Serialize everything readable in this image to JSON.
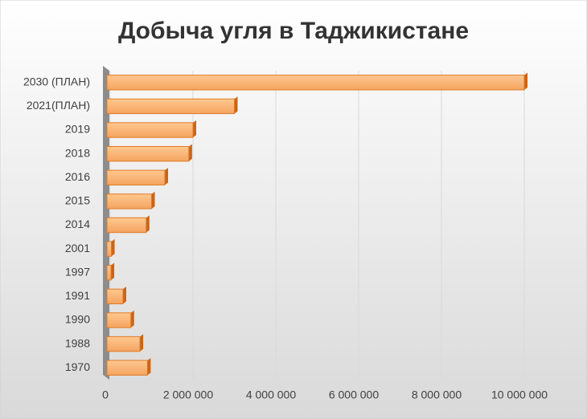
{
  "chart_data": {
    "type": "bar",
    "orientation": "horizontal",
    "title": "Добыча угля в Таджикистане",
    "categories": [
      "2030 (ПЛАН)",
      "2021(ПЛАН)",
      "2019",
      "2018",
      "2016",
      "2015",
      "2014",
      "2001",
      "1997",
      "1991",
      "1990",
      "1988",
      "1970"
    ],
    "values": [
      10000000,
      3000000,
      2000000,
      1900000,
      1320000,
      1000000,
      870000,
      30000,
      20000,
      310000,
      500000,
      720000,
      900000
    ],
    "color": "#f4a460",
    "xlim": [
      0,
      10000000
    ],
    "xticks": [
      0,
      {
        "value": 2000000,
        "label": "2 000 000"
      },
      {
        "value": 4000000,
        "label": "4 000 000"
      },
      {
        "value": 6000000,
        "label": "6 000 000"
      },
      {
        "value": 8000000,
        "label": "8 000 000"
      },
      {
        "value": 10000000,
        "label": "10 000 000"
      }
    ],
    "grid": true
  }
}
